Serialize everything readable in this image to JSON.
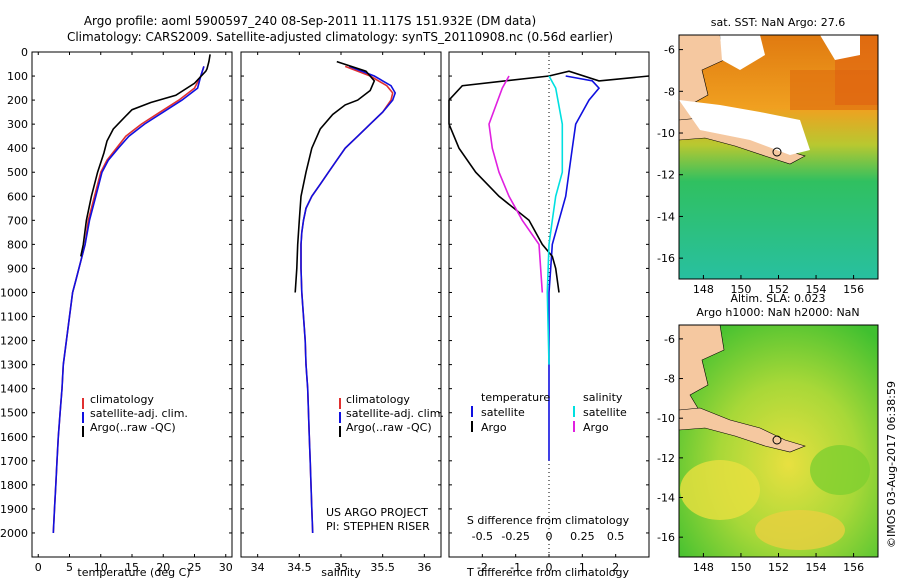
{
  "titles": {
    "line1": "Argo profile: aoml 5900597_240 08-Sep-2011 11.117S 151.932E (DM data)",
    "line2": "Climatology: CARS2009. Satellite-adjusted climatology: synTS_20110908.nc (0.56d earlier)"
  },
  "colors": {
    "climatology": "#e03030",
    "satellite": "#1010e0",
    "argo": "#000000",
    "sal_sat": "#00e0e0",
    "sal_argo": "#e020e0"
  },
  "chart_data": [
    {
      "type": "line",
      "id": "temperature",
      "xlabel": "temperature (deg C)",
      "ylabel": "",
      "xlim": [
        -1,
        31
      ],
      "ylim": [
        2100,
        0
      ],
      "xticks": [
        0,
        5,
        10,
        15,
        20,
        25,
        30
      ],
      "yticks": [
        0,
        100,
        200,
        300,
        400,
        500,
        600,
        700,
        800,
        900,
        1000,
        1100,
        1200,
        1300,
        1400,
        1500,
        1600,
        1700,
        1800,
        1900,
        2000
      ],
      "legend": [
        "climatology",
        "satellite-adj. clim.",
        "Argo(..raw -QC)"
      ],
      "series": [
        {
          "name": "climatology",
          "color": "#e03030",
          "points": [
            [
              26.5,
              60
            ],
            [
              26,
              100
            ],
            [
              25,
              150
            ],
            [
              22.5,
              200
            ],
            [
              19.5,
              250
            ],
            [
              16.5,
              300
            ],
            [
              14,
              350
            ],
            [
              12.5,
              400
            ],
            [
              11,
              450
            ],
            [
              10,
              500
            ],
            [
              9,
              600
            ],
            [
              8,
              700
            ],
            [
              7.5,
              800
            ],
            [
              7,
              850
            ],
            [
              6,
              950
            ],
            [
              5.5,
              1000
            ],
            [
              5,
              1100
            ],
            [
              4.5,
              1200
            ],
            [
              4,
              1300
            ],
            [
              3.8,
              1400
            ],
            [
              3.5,
              1500
            ],
            [
              3.2,
              1600
            ],
            [
              3,
              1700
            ],
            [
              2.8,
              1800
            ],
            [
              2.6,
              1900
            ],
            [
              2.4,
              2000
            ]
          ]
        },
        {
          "name": "satellite",
          "color": "#1010e0",
          "points": [
            [
              26.5,
              60
            ],
            [
              26,
              100
            ],
            [
              25.5,
              150
            ],
            [
              23,
              200
            ],
            [
              20,
              250
            ],
            [
              17,
              300
            ],
            [
              14.5,
              350
            ],
            [
              12.8,
              400
            ],
            [
              11.2,
              450
            ],
            [
              10.2,
              500
            ],
            [
              9.2,
              600
            ],
            [
              8.2,
              700
            ],
            [
              7.5,
              800
            ],
            [
              7,
              850
            ],
            [
              6,
              950
            ],
            [
              5.5,
              1000
            ],
            [
              5,
              1100
            ],
            [
              4.5,
              1200
            ],
            [
              4,
              1300
            ],
            [
              3.8,
              1400
            ],
            [
              3.5,
              1500
            ],
            [
              3.2,
              1600
            ],
            [
              3,
              1700
            ],
            [
              2.8,
              1800
            ],
            [
              2.6,
              1900
            ],
            [
              2.4,
              2000
            ]
          ]
        },
        {
          "name": "argo",
          "color": "#000000",
          "points": [
            [
              27.5,
              10
            ],
            [
              27.3,
              40
            ],
            [
              27,
              70
            ],
            [
              26.8,
              80
            ],
            [
              25,
              130
            ],
            [
              22,
              180
            ],
            [
              18,
              210
            ],
            [
              15,
              240
            ],
            [
              13.5,
              280
            ],
            [
              12,
              320
            ],
            [
              11,
              370
            ],
            [
              10.5,
              420
            ],
            [
              9.5,
              500
            ],
            [
              8.5,
              600
            ],
            [
              7.7,
              700
            ],
            [
              7.2,
              800
            ],
            [
              6.8,
              850
            ]
          ]
        }
      ]
    },
    {
      "type": "line",
      "id": "salinity",
      "xlabel": "salinity",
      "ylabel": "",
      "xlim": [
        33.8,
        36.2
      ],
      "ylim": [
        2100,
        0
      ],
      "xticks": [
        34,
        34.5,
        35,
        35.5,
        36
      ],
      "legend": [
        "climatology",
        "satellite-adj. clim.",
        "Argo(..raw -QC)"
      ],
      "annotations": [
        "US ARGO PROJECT",
        "PI: STEPHEN RISER"
      ],
      "series": [
        {
          "name": "climatology",
          "color": "#e03030",
          "points": [
            [
              35.05,
              60
            ],
            [
              35.35,
              100
            ],
            [
              35.55,
              140
            ],
            [
              35.62,
              170
            ],
            [
              35.6,
              200
            ],
            [
              35.5,
              250
            ],
            [
              35.35,
              300
            ],
            [
              35.2,
              350
            ],
            [
              35.05,
              400
            ],
            [
              34.95,
              450
            ],
            [
              34.85,
              500
            ],
            [
              34.75,
              550
            ],
            [
              34.65,
              600
            ],
            [
              34.58,
              650
            ],
            [
              34.55,
              700
            ],
            [
              34.53,
              750
            ],
            [
              34.52,
              800
            ],
            [
              34.52,
              900
            ],
            [
              34.53,
              1000
            ],
            [
              34.55,
              1100
            ],
            [
              34.57,
              1200
            ],
            [
              34.58,
              1300
            ],
            [
              34.6,
              1400
            ],
            [
              34.61,
              1500
            ],
            [
              34.62,
              1600
            ],
            [
              34.63,
              1700
            ],
            [
              34.64,
              1800
            ],
            [
              34.65,
              1900
            ],
            [
              34.66,
              2000
            ]
          ]
        },
        {
          "name": "satellite",
          "color": "#1010e0",
          "points": [
            [
              35.1,
              60
            ],
            [
              35.4,
              100
            ],
            [
              35.6,
              140
            ],
            [
              35.65,
              170
            ],
            [
              35.62,
              200
            ],
            [
              35.5,
              250
            ],
            [
              35.35,
              300
            ],
            [
              35.2,
              350
            ],
            [
              35.05,
              400
            ],
            [
              34.95,
              450
            ],
            [
              34.85,
              500
            ],
            [
              34.75,
              550
            ],
            [
              34.65,
              600
            ],
            [
              34.58,
              650
            ],
            [
              34.55,
              700
            ],
            [
              34.53,
              750
            ],
            [
              34.52,
              800
            ],
            [
              34.52,
              900
            ],
            [
              34.53,
              1000
            ],
            [
              34.55,
              1100
            ],
            [
              34.57,
              1200
            ],
            [
              34.58,
              1300
            ],
            [
              34.6,
              1400
            ],
            [
              34.61,
              1500
            ],
            [
              34.62,
              1600
            ],
            [
              34.63,
              1700
            ],
            [
              34.64,
              1800
            ],
            [
              34.65,
              1900
            ],
            [
              34.66,
              2000
            ]
          ]
        },
        {
          "name": "argo",
          "color": "#000000",
          "points": [
            [
              34.95,
              40
            ],
            [
              35.3,
              80
            ],
            [
              35.4,
              120
            ],
            [
              35.35,
              160
            ],
            [
              35.2,
              200
            ],
            [
              35.05,
              220
            ],
            [
              34.9,
              260
            ],
            [
              34.75,
              320
            ],
            [
              34.65,
              400
            ],
            [
              34.58,
              500
            ],
            [
              34.52,
              600
            ],
            [
              34.5,
              700
            ],
            [
              34.48,
              800
            ],
            [
              34.47,
              900
            ],
            [
              34.45,
              1000
            ]
          ]
        }
      ]
    },
    {
      "type": "line",
      "id": "difference",
      "xlabel": "T difference from climatology",
      "xlabel_top": "S difference from climatology",
      "xlim": [
        -3,
        3
      ],
      "ylim": [
        2100,
        0
      ],
      "xticks": [
        -2,
        -1,
        0,
        1,
        2
      ],
      "s_ticks": [
        "-0.5",
        "-0.25",
        "0",
        "0.25",
        "0.5"
      ],
      "legend_headers": [
        "temperature",
        "salinity"
      ],
      "legend": [
        "satellite",
        "Argo",
        "satellite",
        "Argo"
      ],
      "series": [
        {
          "name": "T satellite",
          "color": "#1010e0",
          "points": [
            [
              0.5,
              100
            ],
            [
              1.3,
              120
            ],
            [
              1.5,
              150
            ],
            [
              1.2,
              200
            ],
            [
              0.8,
              300
            ],
            [
              0.7,
              400
            ],
            [
              0.6,
              500
            ],
            [
              0.5,
              600
            ],
            [
              0.3,
              700
            ],
            [
              0.1,
              800
            ],
            [
              0.05,
              900
            ],
            [
              0,
              1000
            ],
            [
              0,
              1700
            ]
          ]
        },
        {
          "name": "T argo",
          "color": "#000000",
          "points": [
            [
              3.0,
              100
            ],
            [
              1.5,
              120
            ],
            [
              0.6,
              80
            ],
            [
              0,
              100
            ],
            [
              -2.6,
              140
            ],
            [
              -3,
              200
            ],
            [
              -3,
              300
            ],
            [
              -2.7,
              400
            ],
            [
              -2.2,
              500
            ],
            [
              -1.5,
              600
            ],
            [
              -0.6,
              700
            ],
            [
              -0.2,
              800
            ],
            [
              0.1,
              850
            ],
            [
              0.2,
              900
            ],
            [
              0.3,
              1000
            ]
          ]
        },
        {
          "name": "S satellite",
          "color": "#00e0e0",
          "points": [
            [
              0,
              100
            ],
            [
              0.2,
              150
            ],
            [
              0.4,
              300
            ],
            [
              0.4,
              500
            ],
            [
              0.2,
              600
            ],
            [
              0.1,
              700
            ],
            [
              0,
              800
            ],
            [
              -0.05,
              1000
            ],
            [
              0,
              1300
            ]
          ]
        },
        {
          "name": "S argo",
          "color": "#e020e0",
          "points": [
            [
              -1.2,
              100
            ],
            [
              -1.4,
              150
            ],
            [
              -1.8,
              300
            ],
            [
              -1.7,
              400
            ],
            [
              -1.5,
              500
            ],
            [
              -1.2,
              600
            ],
            [
              -0.8,
              700
            ],
            [
              -0.3,
              800
            ],
            [
              -0.2,
              1000
            ]
          ]
        }
      ]
    }
  ],
  "maps": {
    "sst": {
      "title": "sat. SST: NaN Argo: 27.6",
      "xticks": [
        148,
        150,
        152,
        154,
        156
      ],
      "yticks": [
        -6,
        -8,
        -10,
        -12,
        -14,
        -16
      ]
    },
    "sla": {
      "title1": "Altim. SLA: 0.023",
      "title2": "Argo h1000: NaN h2000: NaN",
      "xticks": [
        148,
        150,
        152,
        154,
        156
      ],
      "yticks": [
        -6,
        -8,
        -10,
        -12,
        -14,
        -16
      ]
    }
  },
  "watermark": "©IMOS 03-Aug-2017 06:38:59"
}
